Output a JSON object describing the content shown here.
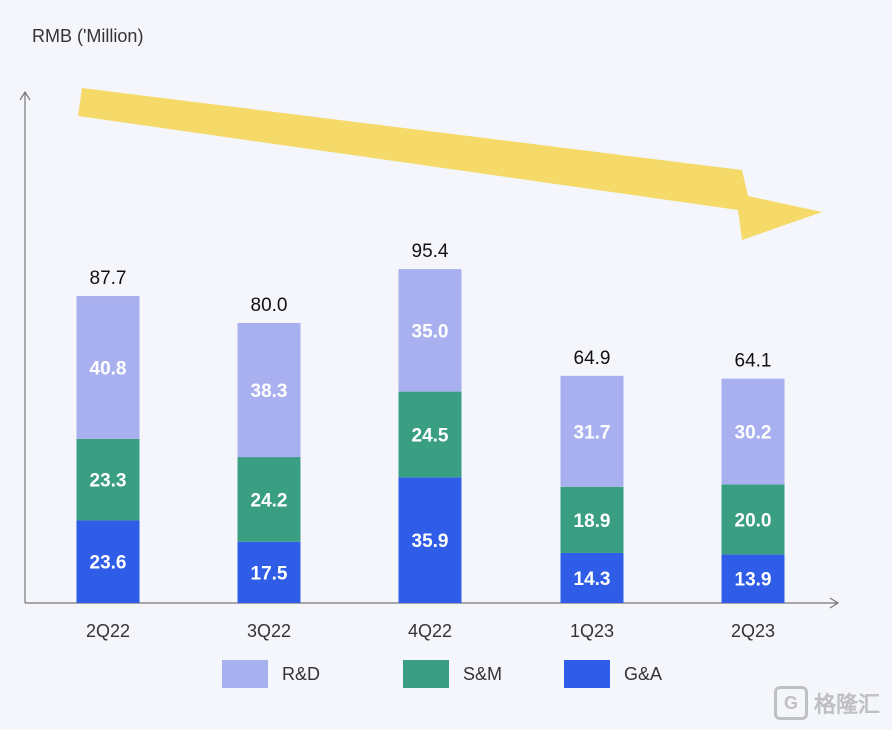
{
  "chart_data": {
    "type": "bar",
    "stacked": true,
    "ylabel": "RMB ('Million)",
    "categories": [
      "2Q22",
      "3Q22",
      "4Q22",
      "1Q23",
      "2Q23"
    ],
    "series": [
      {
        "name": "G&A",
        "values": [
          23.6,
          17.5,
          35.9,
          14.3,
          13.9
        ],
        "color": "#2f5de8"
      },
      {
        "name": "S&M",
        "values": [
          23.3,
          24.2,
          24.5,
          18.9,
          20.0
        ],
        "color": "#3a9e83"
      },
      {
        "name": "R&D",
        "values": [
          40.8,
          38.3,
          35.0,
          31.7,
          30.2
        ],
        "color": "#a9b0ef"
      }
    ],
    "totals": [
      "87.7",
      "80.0",
      "95.4",
      "64.9",
      "64.1"
    ],
    "ylim": [
      0,
      100
    ],
    "grid": false,
    "legend_position": "bottom",
    "trend_arrow_color": "#f5d75a"
  },
  "watermark": {
    "icon": "G",
    "text": "格隆汇"
  }
}
